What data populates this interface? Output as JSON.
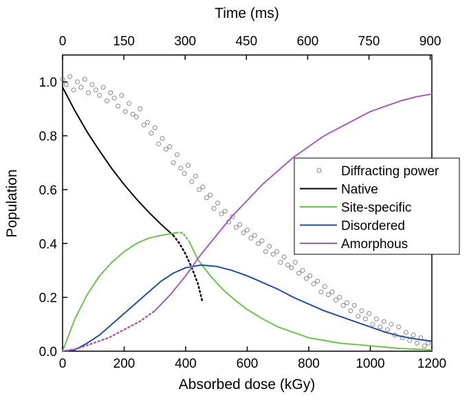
{
  "chart_data": {
    "type": "line",
    "xlabel": "Absorbed dose (kGy)",
    "ylabel": "Population",
    "x2label": "Time (ms)",
    "xlim": [
      0,
      1200
    ],
    "xticks": [
      0,
      200,
      400,
      600,
      800,
      1000,
      1200
    ],
    "x2lim": [
      0,
      904
    ],
    "x2ticks": [
      0,
      150,
      300,
      450,
      600,
      750,
      900
    ],
    "ylim": [
      0,
      1.1
    ],
    "yticks": [
      {
        "value": 0,
        "label": "0.0"
      },
      0.2,
      0.4,
      0.6,
      0.8,
      {
        "value": 1,
        "label": "1.0"
      }
    ],
    "legend": "right",
    "series": [
      {
        "name": "Diffracting power",
        "type": "scatter",
        "color": "#888888",
        "x": [
          0,
          12,
          24,
          36,
          48,
          60,
          72,
          84,
          96,
          108,
          120,
          132,
          144,
          156,
          168,
          180,
          192,
          204,
          216,
          228,
          240,
          252,
          264,
          276,
          288,
          300,
          312,
          324,
          336,
          348,
          360,
          372,
          384,
          396,
          408,
          420,
          432,
          444,
          456,
          468,
          480,
          492,
          504,
          516,
          528,
          540,
          552,
          564,
          576,
          588,
          600,
          612,
          624,
          636,
          648,
          660,
          672,
          684,
          696,
          708,
          720,
          732,
          744,
          756,
          768,
          780,
          792,
          804,
          816,
          828,
          840,
          852,
          864,
          876,
          888,
          900,
          912,
          924,
          936,
          948,
          960,
          972,
          984,
          996,
          1008,
          1020,
          1032,
          1044,
          1056,
          1068,
          1080,
          1092,
          1104,
          1116,
          1128,
          1140,
          1152,
          1164,
          1176,
          1188
        ],
        "values": [
          1.01,
          0.99,
          1.02,
          0.97,
          1.0,
          0.98,
          1.01,
          0.96,
          0.99,
          0.97,
          0.95,
          0.98,
          0.93,
          0.96,
          0.94,
          0.91,
          0.95,
          0.89,
          0.92,
          0.88,
          0.87,
          0.9,
          0.84,
          0.85,
          0.81,
          0.83,
          0.77,
          0.79,
          0.75,
          0.76,
          0.7,
          0.73,
          0.68,
          0.66,
          0.69,
          0.63,
          0.65,
          0.6,
          0.61,
          0.57,
          0.58,
          0.53,
          0.55,
          0.51,
          0.52,
          0.48,
          0.5,
          0.46,
          0.47,
          0.44,
          0.45,
          0.42,
          0.43,
          0.4,
          0.41,
          0.37,
          0.39,
          0.36,
          0.37,
          0.33,
          0.35,
          0.32,
          0.31,
          0.33,
          0.29,
          0.3,
          0.27,
          0.28,
          0.25,
          0.26,
          0.22,
          0.24,
          0.21,
          0.22,
          0.19,
          0.2,
          0.17,
          0.18,
          0.15,
          0.17,
          0.13,
          0.15,
          0.12,
          0.14,
          0.1,
          0.12,
          0.09,
          0.11,
          0.08,
          0.1,
          0.06,
          0.09,
          0.05,
          0.07,
          0.04,
          0.06,
          0.03,
          0.05,
          0.02,
          0.03
        ]
      },
      {
        "name": "Native",
        "type": "line",
        "color": "#000000",
        "segments": [
          {
            "style": "solid",
            "x": [
              0,
              40,
              80,
              120,
              160,
              200,
              240,
              280,
              320,
              360
            ],
            "values": [
              0.98,
              0.893,
              0.814,
              0.744,
              0.678,
              0.619,
              0.565,
              0.516,
              0.471,
              0.43
            ]
          },
          {
            "style": "dotted",
            "x": [
              360,
              380,
              400,
              420,
              440,
              455
            ],
            "values": [
              0.43,
              0.4,
              0.36,
              0.31,
              0.25,
              0.18
            ]
          }
        ]
      },
      {
        "name": "Site-specific",
        "type": "line",
        "color": "#6cc24a",
        "segments": [
          {
            "style": "solid",
            "x": [
              0,
              40,
              80,
              120,
              160,
              200,
              240,
              280,
              320,
              370
            ],
            "values": [
              0,
              0.12,
              0.21,
              0.28,
              0.33,
              0.37,
              0.4,
              0.42,
              0.43,
              0.44
            ]
          },
          {
            "style": "dotted",
            "x": [
              370,
              390,
              410
            ],
            "values": [
              0.44,
              0.44,
              0.41
            ]
          },
          {
            "style": "solid",
            "x": [
              410,
              440,
              480,
              520,
              560,
              600,
              650,
              700,
              750,
              800,
              900,
              1000,
              1100,
              1200
            ],
            "values": [
              0.41,
              0.34,
              0.28,
              0.23,
              0.19,
              0.155,
              0.12,
              0.09,
              0.07,
              0.05,
              0.03,
              0.02,
              0.01,
              0.005
            ]
          }
        ]
      },
      {
        "name": "Disordered",
        "type": "line",
        "color": "#1f4e9c",
        "segments": [
          {
            "style": "solid",
            "x": [
              0,
              40,
              80,
              120,
              160,
              200,
              240,
              280,
              320,
              360,
              400,
              450,
              500,
              550,
              600,
              650,
              700,
              750,
              800,
              850,
              900,
              950,
              1000,
              1050,
              1100,
              1150,
              1200
            ],
            "values": [
              0,
              0.005,
              0.03,
              0.06,
              0.1,
              0.14,
              0.18,
              0.22,
              0.26,
              0.29,
              0.31,
              0.32,
              0.315,
              0.3,
              0.28,
              0.255,
              0.23,
              0.2,
              0.175,
              0.15,
              0.13,
              0.11,
              0.09,
              0.07,
              0.055,
              0.045,
              0.037
            ]
          }
        ]
      },
      {
        "name": "Amorphous",
        "type": "line",
        "color": "#a25bbf",
        "segments": [
          {
            "style": "dotted",
            "x": [
              0,
              50,
              100,
              150,
              200,
              250,
              300
            ],
            "values": [
              0,
              0.01,
              0.03,
              0.05,
              0.08,
              0.11,
              0.15
            ]
          },
          {
            "style": "solid",
            "x": [
              300,
              350,
              400,
              450,
              500,
              550,
              600,
              650,
              700,
              750,
              800,
              850,
              900,
              950,
              1000,
              1050,
              1100,
              1150,
              1200
            ],
            "values": [
              0.15,
              0.21,
              0.28,
              0.36,
              0.43,
              0.5,
              0.56,
              0.62,
              0.67,
              0.72,
              0.76,
              0.8,
              0.83,
              0.86,
              0.89,
              0.91,
              0.93,
              0.945,
              0.955
            ]
          }
        ]
      }
    ]
  }
}
